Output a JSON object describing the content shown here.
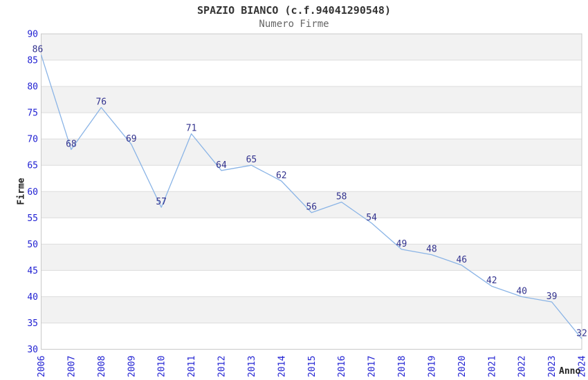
{
  "chart_data": {
    "type": "line",
    "title": "SPAZIO BIANCO (c.f.94041290548)",
    "subtitle": "Numero Firme",
    "xlabel": "Anno",
    "ylabel": "Firme",
    "x": [
      "2006",
      "2007",
      "2008",
      "2009",
      "2010",
      "2011",
      "2012",
      "2013",
      "2014",
      "2015",
      "2016",
      "2017",
      "2018",
      "2019",
      "2020",
      "2021",
      "2022",
      "2023",
      "2024"
    ],
    "values": [
      86,
      68,
      76,
      69,
      57,
      71,
      64,
      65,
      62,
      56,
      58,
      54,
      49,
      48,
      46,
      42,
      40,
      39,
      32
    ],
    "ylim": [
      30,
      90
    ],
    "ytick_step": 5,
    "yticks": [
      30,
      35,
      40,
      45,
      50,
      55,
      60,
      65,
      70,
      75,
      80,
      85,
      90
    ],
    "grid": "horizontal-alternating-bands",
    "legend": "none",
    "point_labels_visible": true,
    "colors": {
      "line": "#8ab4e6",
      "point_label": "#32328e",
      "tick_label": "#1f1fd2",
      "band_gray": "#f2f2f2",
      "band_white": "#ffffff",
      "gridline": "#dcdcdc",
      "border": "#c9c9c9",
      "title": "#333333",
      "subtitle": "#666666",
      "axis_title": "#222222",
      "background": "#ffffff"
    }
  }
}
